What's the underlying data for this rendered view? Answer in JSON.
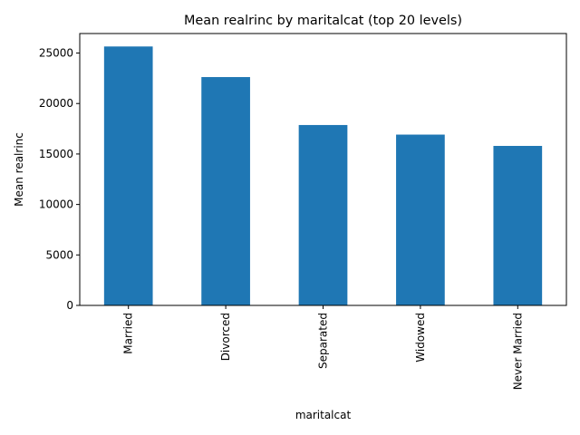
{
  "chart_data": {
    "type": "bar",
    "title": "Mean realrinc by maritalcat (top 20 levels)",
    "xlabel": "maritalcat",
    "ylabel": "Mean realrinc",
    "categories": [
      "Married",
      "Divorced",
      "Separated",
      "Widowed",
      "Never Married"
    ],
    "values": [
      25650,
      22620,
      17870,
      16920,
      15800
    ],
    "ylim": [
      0,
      26933
    ],
    "yticks": [
      0,
      5000,
      10000,
      15000,
      20000,
      25000
    ],
    "grid": false,
    "legend": "none",
    "bar_color": "#1f77b4"
  }
}
